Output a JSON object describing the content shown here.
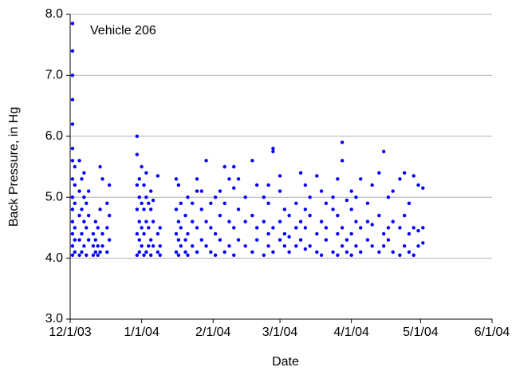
{
  "chart_data": {
    "type": "scatter",
    "annotation": "Vehicle 206",
    "xlabel": "Date",
    "ylabel": "Back Pressure, in Hg",
    "color": "#0000ff",
    "grid": true,
    "xlim": [
      "12/1/03",
      "6/1/04"
    ],
    "xticks": [
      "12/1/03",
      "1/1/04",
      "2/1/04",
      "3/1/04",
      "4/1/04",
      "5/1/04",
      "6/1/04"
    ],
    "ylim": [
      3,
      8
    ],
    "yticks": [
      {
        "value": 3,
        "label": "3.0"
      },
      {
        "value": 4,
        "label": "4.0"
      },
      {
        "value": 5,
        "label": "5.0"
      },
      {
        "value": 6,
        "label": "6.0"
      },
      {
        "value": 7,
        "label": "7.0"
      },
      {
        "value": 8,
        "label": "8.0"
      }
    ],
    "x": [
      "12/2/03",
      "12/2/03",
      "12/2/03",
      "12/2/03",
      "12/2/03",
      "12/2/03",
      "12/2/03",
      "12/2/03",
      "12/2/03",
      "12/2/03",
      "12/2/03",
      "12/2/03",
      "12/2/03",
      "12/2/03",
      "12/3/03",
      "12/3/03",
      "12/3/03",
      "12/3/03",
      "12/3/03",
      "12/3/03",
      "12/5/03",
      "12/5/03",
      "12/5/03",
      "12/5/03",
      "12/5/03",
      "12/6/03",
      "12/6/03",
      "12/6/03",
      "12/6/03",
      "12/7/03",
      "12/7/03",
      "12/7/03",
      "12/7/03",
      "12/8/03",
      "12/8/03",
      "12/8/03",
      "12/9/03",
      "12/9/03",
      "12/9/03",
      "12/11/03",
      "12/11/03",
      "12/11/03",
      "12/12/03",
      "12/12/03",
      "12/12/03",
      "12/13/03",
      "12/13/03",
      "12/13/03",
      "12/14/03",
      "12/14/03",
      "12/14/03",
      "12/15/03",
      "12/15/03",
      "12/15/03",
      "12/17/03",
      "12/17/03",
      "12/17/03",
      "12/18/03",
      "12/18/03",
      "12/18/03",
      "12/30/03",
      "12/30/03",
      "12/30/03",
      "12/30/03",
      "12/30/03",
      "12/30/03",
      "12/31/03",
      "12/31/03",
      "12/31/03",
      "12/31/03",
      "12/31/03",
      "1/1/04",
      "1/1/04",
      "1/1/04",
      "1/1/04",
      "1/2/04",
      "1/2/04",
      "1/2/04",
      "1/2/04",
      "1/3/04",
      "1/3/04",
      "1/3/04",
      "1/3/04",
      "1/4/04",
      "1/4/04",
      "1/4/04",
      "1/5/04",
      "1/5/04",
      "1/5/04",
      "1/5/04",
      "1/6/04",
      "1/6/04",
      "1/6/04",
      "1/8/04",
      "1/8/04",
      "1/8/04",
      "1/9/04",
      "1/9/04",
      "1/9/04",
      "1/16/04",
      "1/16/04",
      "1/16/04",
      "1/16/04",
      "1/17/04",
      "1/17/04",
      "1/17/04",
      "1/17/04",
      "1/18/04",
      "1/18/04",
      "1/18/04",
      "1/20/04",
      "1/20/04",
      "1/20/04",
      "1/21/04",
      "1/21/04",
      "1/21/04",
      "1/23/04",
      "1/23/04",
      "1/23/04",
      "1/25/04",
      "1/25/04",
      "1/25/04",
      "1/25/04",
      "1/27/04",
      "1/27/04",
      "1/27/04",
      "1/29/04",
      "1/29/04",
      "1/29/04",
      "1/31/04",
      "1/31/04",
      "1/31/04",
      "2/2/04",
      "2/2/04",
      "2/2/04",
      "2/4/04",
      "2/4/04",
      "2/4/04",
      "2/6/04",
      "2/6/04",
      "2/6/04",
      "2/8/04",
      "2/8/04",
      "2/8/04",
      "2/10/04",
      "2/10/04",
      "2/10/04",
      "2/10/04",
      "2/12/04",
      "2/12/04",
      "2/12/04",
      "2/15/04",
      "2/15/04",
      "2/15/04",
      "2/18/04",
      "2/18/04",
      "2/18/04",
      "2/20/04",
      "2/20/04",
      "2/20/04",
      "2/23/04",
      "2/23/04",
      "2/23/04",
      "2/25/04",
      "2/25/04",
      "2/25/04",
      "2/25/04",
      "2/27/04",
      "2/27/04",
      "2/27/04",
      "2/27/04",
      "3/1/04",
      "3/1/04",
      "3/1/04",
      "3/1/04",
      "3/3/04",
      "3/3/04",
      "3/3/04",
      "3/5/04",
      "3/5/04",
      "3/5/04",
      "3/8/04",
      "3/8/04",
      "3/8/04",
      "3/10/04",
      "3/10/04",
      "3/10/04",
      "3/12/04",
      "3/12/04",
      "3/12/04",
      "3/12/04",
      "3/14/04",
      "3/14/04",
      "3/14/04",
      "3/17/04",
      "3/17/04",
      "3/17/04",
      "3/19/04",
      "3/19/04",
      "3/19/04",
      "3/21/04",
      "3/21/04",
      "3/21/04",
      "3/24/04",
      "3/24/04",
      "3/24/04",
      "3/26/04",
      "3/26/04",
      "3/26/04",
      "3/26/04",
      "3/28/04",
      "3/28/04",
      "3/28/04",
      "3/28/04",
      "3/30/04",
      "3/30/04",
      "3/30/04",
      "4/1/04",
      "4/1/04",
      "4/1/04",
      "4/1/04",
      "4/3/04",
      "4/3/04",
      "4/3/04",
      "4/5/04",
      "4/5/04",
      "4/5/04",
      "4/8/04",
      "4/8/04",
      "4/8/04",
      "4/10/04",
      "4/10/04",
      "4/10/04",
      "4/13/04",
      "4/13/04",
      "4/13/04",
      "4/15/04",
      "4/15/04",
      "4/15/04",
      "4/17/04",
      "4/17/04",
      "4/17/04",
      "4/19/04",
      "4/19/04",
      "4/19/04",
      "4/22/04",
      "4/22/04",
      "4/22/04",
      "4/24/04",
      "4/24/04",
      "4/24/04",
      "4/26/04",
      "4/26/04",
      "4/26/04",
      "4/28/04",
      "4/28/04",
      "4/28/04",
      "4/30/04",
      "4/30/04",
      "4/30/04",
      "5/2/04",
      "5/2/04",
      "5/2/04"
    ],
    "values": [
      4.05,
      4.2,
      4.4,
      4.6,
      4.8,
      5.0,
      5.3,
      5.6,
      5.8,
      6.2,
      6.6,
      7.0,
      7.4,
      7.85,
      4.1,
      4.3,
      4.5,
      4.9,
      5.2,
      5.5,
      4.05,
      4.3,
      4.7,
      5.1,
      5.6,
      4.1,
      4.4,
      4.8,
      5.3,
      4.2,
      4.6,
      5.0,
      5.4,
      4.05,
      4.5,
      4.9,
      4.3,
      4.7,
      5.1,
      4.05,
      4.2,
      4.4,
      4.1,
      4.3,
      4.6,
      4.05,
      4.2,
      4.5,
      4.1,
      4.8,
      5.5,
      4.2,
      4.4,
      5.3,
      4.1,
      4.5,
      4.9,
      4.3,
      4.7,
      5.2,
      4.05,
      4.4,
      4.8,
      5.2,
      5.7,
      6.0,
      4.1,
      4.3,
      4.6,
      5.0,
      5.3,
      4.2,
      4.5,
      4.9,
      5.5,
      4.05,
      4.4,
      4.8,
      5.2,
      4.1,
      4.6,
      5.0,
      5.4,
      4.2,
      4.5,
      4.9,
      4.05,
      4.3,
      4.8,
      5.1,
      4.2,
      4.6,
      4.95,
      4.1,
      4.4,
      5.35,
      4.05,
      4.2,
      4.5,
      4.1,
      4.4,
      4.8,
      5.3,
      4.05,
      4.3,
      4.6,
      5.2,
      4.2,
      4.5,
      4.9,
      4.1,
      4.3,
      4.7,
      4.05,
      4.4,
      5.0,
      4.2,
      4.6,
      4.9,
      4.1,
      4.5,
      5.1,
      5.3,
      4.3,
      4.8,
      5.1,
      4.2,
      4.6,
      5.6,
      4.1,
      4.5,
      4.9,
      4.05,
      4.4,
      5.0,
      4.3,
      4.7,
      5.1,
      4.1,
      4.9,
      5.5,
      4.2,
      4.6,
      5.3,
      4.05,
      4.5,
      5.15,
      5.5,
      4.3,
      4.8,
      5.3,
      4.2,
      4.6,
      5.0,
      4.1,
      4.7,
      5.6,
      4.3,
      4.5,
      5.2,
      4.05,
      4.6,
      5.0,
      4.2,
      4.4,
      4.9,
      5.2,
      4.1,
      4.5,
      5.8,
      5.75,
      4.3,
      4.6,
      5.1,
      5.35,
      4.2,
      4.4,
      4.8,
      4.1,
      4.35,
      4.7,
      4.2,
      4.5,
      4.9,
      4.3,
      4.6,
      5.4,
      4.15,
      4.5,
      4.8,
      5.2,
      4.2,
      4.7,
      5.0,
      4.1,
      4.4,
      5.35,
      4.05,
      4.6,
      5.1,
      4.3,
      4.5,
      4.9,
      4.1,
      4.8,
      5.0,
      4.05,
      4.4,
      4.7,
      5.3,
      4.2,
      4.5,
      5.6,
      5.9,
      4.1,
      4.3,
      4.95,
      4.05,
      4.4,
      4.8,
      5.1,
      4.2,
      4.6,
      5.0,
      4.1,
      4.5,
      5.3,
      4.3,
      4.6,
      4.9,
      4.2,
      4.55,
      5.2,
      4.1,
      4.7,
      5.4,
      4.2,
      4.4,
      5.75,
      4.3,
      4.5,
      5.0,
      4.1,
      4.6,
      5.1,
      4.05,
      4.5,
      5.3,
      4.2,
      4.7,
      5.4,
      4.1,
      4.4,
      4.9,
      4.05,
      4.5,
      5.35,
      4.2,
      4.45,
      5.2,
      4.25,
      4.5,
      5.15
    ]
  }
}
